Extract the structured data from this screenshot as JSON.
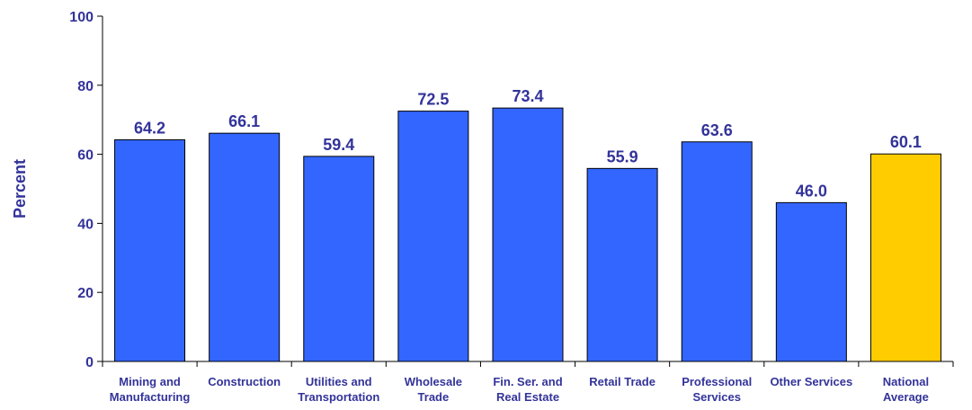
{
  "chart_data": {
    "type": "bar",
    "title": "",
    "xlabel": "",
    "ylabel": "Percent",
    "ylim": [
      0,
      100
    ],
    "yticks": [
      0,
      20,
      40,
      60,
      80,
      100
    ],
    "grid": false,
    "categories": [
      [
        "Mining and",
        "Manufacturing"
      ],
      [
        "Construction"
      ],
      [
        "Utilities and",
        "Transportation"
      ],
      [
        "Wholesale",
        "Trade"
      ],
      [
        "Fin. Ser. and",
        "Real Estate"
      ],
      [
        "Retail Trade"
      ],
      [
        "Professional",
        "Services"
      ],
      [
        "Other Services"
      ],
      [
        "National",
        "Average"
      ]
    ],
    "values": [
      64.2,
      66.1,
      59.4,
      72.5,
      73.4,
      55.9,
      63.6,
      46.0,
      60.1
    ],
    "value_labels": [
      "64.2",
      "66.1",
      "59.4",
      "72.5",
      "73.4",
      "55.9",
      "63.6",
      "46.0",
      "60.1"
    ],
    "bar_colors": [
      "#3366ff",
      "#3366ff",
      "#3366ff",
      "#3366ff",
      "#3366ff",
      "#3366ff",
      "#3366ff",
      "#3366ff",
      "#ffcc00"
    ],
    "text_color": "#33339a"
  }
}
